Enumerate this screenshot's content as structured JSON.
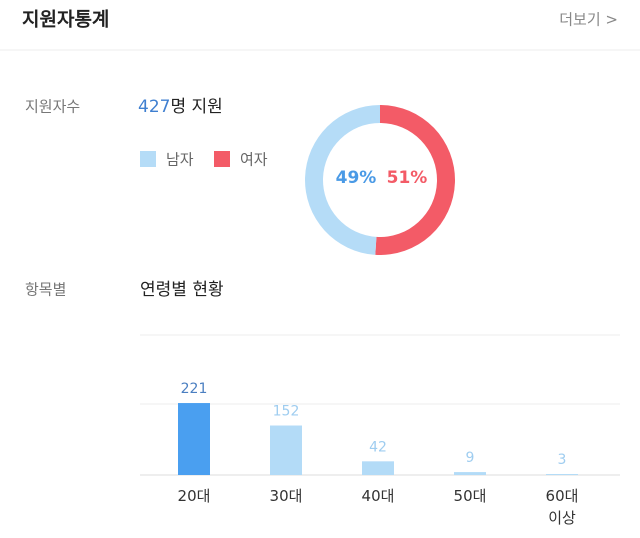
{
  "header": {
    "title": "지원자통계",
    "more": "더보기 >"
  },
  "applicants": {
    "label": "지원자수",
    "count": 427,
    "count_text": "명 지원"
  },
  "section": {
    "label": "항목별",
    "title": "연령별 현황"
  },
  "chart_data": [
    {
      "type": "pie",
      "categories": [
        "남자",
        "여자"
      ],
      "values": [
        49,
        51
      ],
      "value_labels": [
        "49%",
        "51%"
      ],
      "colors": [
        "#b5dcf7",
        "#f35b67"
      ],
      "label_colors": [
        "#4a9ae6",
        "#f35b67"
      ]
    },
    {
      "type": "bar",
      "categories": [
        "20대",
        "30대",
        "40대",
        "50대",
        "60대 이상"
      ],
      "values": [
        221,
        152,
        42,
        9,
        3
      ],
      "colors": [
        "#4a9ff0",
        "#b3dbf7",
        "#b3dbf7",
        "#b3dbf7",
        "#b3dbf7"
      ],
      "label_colors": [
        "#4b7fc1",
        "#9fcdf0",
        "#9fcdf0",
        "#9fcdf0",
        "#9fcdf0"
      ],
      "ylim": [
        0,
        430
      ]
    }
  ]
}
